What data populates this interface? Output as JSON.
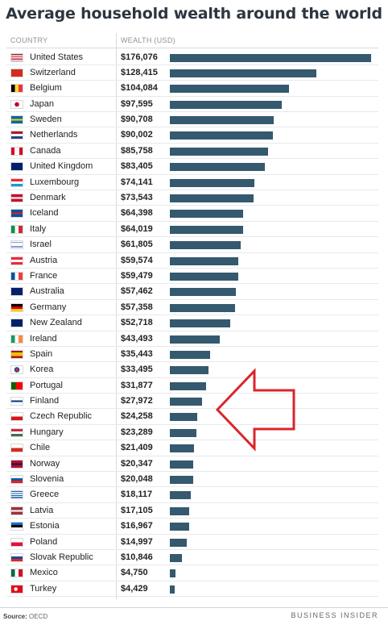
{
  "chart_data": {
    "type": "bar",
    "title": "Average household wealth around the world",
    "column_headers": [
      "COUNTRY",
      "WEALTH (USD)"
    ],
    "categories": [
      "United States",
      "Switzerland",
      "Belgium",
      "Japan",
      "Sweden",
      "Netherlands",
      "Canada",
      "United Kingdom",
      "Luxembourg",
      "Denmark",
      "Iceland",
      "Italy",
      "Israel",
      "Austria",
      "France",
      "Australia",
      "Germany",
      "New Zealand",
      "Ireland",
      "Spain",
      "Korea",
      "Portugal",
      "Finland",
      "Czech Republic",
      "Hungary",
      "Chile",
      "Norway",
      "Slovenia",
      "Greece",
      "Latvia",
      "Estonia",
      "Poland",
      "Slovak Republic",
      "Mexico",
      "Turkey"
    ],
    "values": [
      176076,
      128415,
      104084,
      97595,
      90708,
      90002,
      85758,
      83405,
      74141,
      73543,
      64398,
      64019,
      61805,
      59574,
      59479,
      57462,
      57358,
      52718,
      43493,
      35443,
      33495,
      31877,
      27972,
      24258,
      23289,
      21409,
      20347,
      20048,
      18117,
      17105,
      16967,
      14997,
      10846,
      4750,
      4429
    ],
    "value_labels": [
      "$176,076",
      "$128,415",
      "$104,084",
      "$97,595",
      "$90,708",
      "$90,002",
      "$85,758",
      "$83,405",
      "$74,141",
      "$73,543",
      "$64,398",
      "$64,019",
      "$61,805",
      "$59,574",
      "$59,479",
      "$57,462",
      "$57,358",
      "$52,718",
      "$43,493",
      "$35,443",
      "$33,495",
      "$31,877",
      "$27,972",
      "$24,258",
      "$23,289",
      "$21,409",
      "$20,347",
      "$20,048",
      "$18,117",
      "$17,105",
      "$16,967",
      "$14,997",
      "$10,846",
      "$4,750",
      "$4,429"
    ],
    "orientation": "horizontal",
    "xlim": [
      0,
      176076
    ],
    "highlighted_category": "Finland",
    "grid": false,
    "legend": "none"
  },
  "colors": {
    "bar": "#35596e",
    "arrow": "#d9262b",
    "title": "#2d3640"
  },
  "footer": {
    "source_label": "Source:",
    "source_text": "OECD",
    "brand": "BUSINESS INSIDER"
  }
}
